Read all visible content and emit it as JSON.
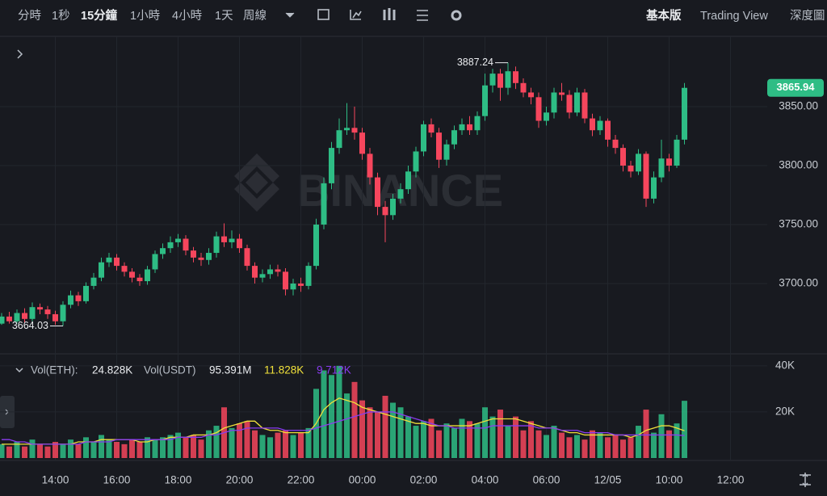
{
  "toolbar": {
    "intervals": [
      "分時",
      "1秒",
      "15分鐘",
      "1小時",
      "4小時",
      "1天",
      "周線"
    ],
    "views": [
      "基本版",
      "Trading View",
      "深度圖"
    ]
  },
  "watermark": "BINANCE",
  "volume_header": {
    "eth_label": "Vol(ETH):",
    "eth_value": "24.828K",
    "usdt_label": "Vol(USDT)",
    "usdt_value": "95.391M",
    "ma5_value": "11.828K",
    "ma10_value": "9.712K"
  },
  "chart_data": [
    {
      "type": "candlestick",
      "up_color": "#2ebd85",
      "down_color": "#f6465d",
      "open": [
        3666,
        3672,
        3668,
        3675,
        3670,
        3680,
        3678,
        3674,
        3668,
        3682,
        3690,
        3685,
        3698,
        3705,
        3718,
        3722,
        3715,
        3710,
        3705,
        3702,
        3712,
        3725,
        3730,
        3735,
        3738,
        3728,
        3722,
        3720,
        3726,
        3740,
        3735,
        3738,
        3730,
        3715,
        3705,
        3708,
        3712,
        3710,
        3695,
        3700,
        3698,
        3715,
        3750,
        3785,
        3815,
        3830,
        3832,
        3828,
        3810,
        3790,
        3765,
        3758,
        3772,
        3780,
        3795,
        3812,
        3835,
        3828,
        3805,
        3818,
        3830,
        3835,
        3830,
        3842,
        3868,
        3878,
        3866,
        3880,
        3870,
        3862,
        3858,
        3838,
        3845,
        3862,
        3860,
        3845,
        3862,
        3840,
        3830,
        3838,
        3822,
        3815,
        3800,
        3795,
        3810,
        3772,
        3790,
        3806,
        3800,
        3822
      ],
      "high": [
        3675,
        3676,
        3678,
        3679,
        3684,
        3683,
        3681,
        3677,
        3685,
        3694,
        3693,
        3701,
        3709,
        3722,
        3726,
        3725,
        3718,
        3713,
        3708,
        3715,
        3728,
        3734,
        3740,
        3742,
        3741,
        3731,
        3726,
        3730,
        3744,
        3751,
        3745,
        3742,
        3733,
        3718,
        3712,
        3716,
        3716,
        3713,
        3704,
        3705,
        3718,
        3755,
        3790,
        3820,
        3840,
        3853,
        3850,
        3832,
        3815,
        3794,
        3770,
        3776,
        3785,
        3800,
        3816,
        3838,
        3840,
        3832,
        3822,
        3834,
        3840,
        3842,
        3846,
        3878,
        3882,
        3882,
        3887.24,
        3884,
        3874,
        3866,
        3862,
        3850,
        3866,
        3870,
        3864,
        3866,
        3865,
        3844,
        3842,
        3840,
        3826,
        3818,
        3804,
        3814,
        3812,
        3795,
        3822,
        3810,
        3826,
        3870
      ],
      "low": [
        3665,
        3666,
        3666,
        3667,
        3668,
        3674,
        3670,
        3665,
        3664.03,
        3679,
        3681,
        3683,
        3695,
        3702,
        3714,
        3711,
        3706,
        3701,
        3698,
        3699,
        3709,
        3721,
        3726,
        3731,
        3724,
        3718,
        3715,
        3716,
        3722,
        3731,
        3730,
        3726,
        3711,
        3700,
        3701,
        3704,
        3706,
        3690,
        3690,
        3693,
        3695,
        3712,
        3746,
        3780,
        3810,
        3826,
        3822,
        3805,
        3784,
        3758,
        3735,
        3754,
        3768,
        3776,
        3790,
        3808,
        3824,
        3798,
        3800,
        3814,
        3826,
        3826,
        3826,
        3838,
        3862,
        3855,
        3860,
        3865,
        3858,
        3852,
        3832,
        3834,
        3840,
        3855,
        3840,
        3842,
        3836,
        3825,
        3826,
        3816,
        3810,
        3795,
        3790,
        3792,
        3765,
        3768,
        3786,
        3795,
        3798,
        3818
      ],
      "close": [
        3672,
        3668,
        3675,
        3670,
        3680,
        3678,
        3674,
        3668,
        3682,
        3690,
        3685,
        3698,
        3705,
        3718,
        3722,
        3715,
        3710,
        3705,
        3702,
        3712,
        3725,
        3730,
        3735,
        3738,
        3728,
        3722,
        3720,
        3726,
        3740,
        3735,
        3738,
        3730,
        3715,
        3705,
        3708,
        3712,
        3710,
        3695,
        3700,
        3698,
        3715,
        3750,
        3785,
        3815,
        3830,
        3832,
        3828,
        3810,
        3790,
        3765,
        3758,
        3772,
        3780,
        3795,
        3812,
        3835,
        3828,
        3805,
        3818,
        3830,
        3835,
        3830,
        3842,
        3868,
        3878,
        3866,
        3880,
        3870,
        3862,
        3858,
        3838,
        3845,
        3862,
        3860,
        3845,
        3862,
        3840,
        3830,
        3838,
        3822,
        3815,
        3800,
        3795,
        3810,
        3772,
        3790,
        3806,
        3800,
        3822,
        3865.94
      ],
      "ylim": [
        3640.4,
        3909.6
      ],
      "yticks": [
        {
          "value": 3700,
          "label": "3700.00"
        },
        {
          "value": 3750,
          "label": "3750.00"
        },
        {
          "value": 3800,
          "label": "3800.00"
        },
        {
          "value": 3850,
          "label": "3850.00"
        }
      ],
      "xticks": [
        {
          "value": 7,
          "label": "14:00"
        },
        {
          "value": 15,
          "label": "16:00"
        },
        {
          "value": 23,
          "label": "18:00"
        },
        {
          "value": 31,
          "label": "20:00"
        },
        {
          "value": 39,
          "label": "22:00"
        },
        {
          "value": 47,
          "label": "00:00"
        },
        {
          "value": 55,
          "label": "02:00"
        },
        {
          "value": 63,
          "label": "04:00"
        },
        {
          "value": 71,
          "label": "06:00"
        },
        {
          "value": 79,
          "label": "12/05"
        },
        {
          "value": 87,
          "label": "10:00"
        },
        {
          "value": 95,
          "label": "12:00"
        }
      ],
      "grid": true
    },
    {
      "type": "volume",
      "values": [
        6000,
        5000,
        7000,
        5000,
        8000,
        6000,
        5000,
        7000,
        6000,
        8000,
        6000,
        9000,
        7000,
        10000,
        8000,
        7000,
        6000,
        8000,
        7000,
        9000,
        8000,
        9000,
        10000,
        11000,
        9000,
        10000,
        8000,
        12000,
        14000,
        22000,
        13000,
        15000,
        16000,
        12000,
        10000,
        9000,
        11000,
        12000,
        10000,
        11000,
        13000,
        30000,
        38000,
        36000,
        40000,
        28000,
        33000,
        25000,
        22000,
        20000,
        27000,
        24000,
        22000,
        18000,
        14000,
        16000,
        17000,
        12000,
        15000,
        13000,
        17000,
        16000,
        15000,
        22000,
        18000,
        21000,
        14000,
        18000,
        12000,
        16000,
        12000,
        10000,
        14000,
        11000,
        9000,
        10000,
        8000,
        12000,
        11000,
        9000,
        10000,
        8000,
        9000,
        14000,
        21000,
        11000,
        19000,
        12000,
        15000,
        24828
      ],
      "series": [
        {
          "color": "#f0e03a",
          "values": [
            6000,
            6000,
            6000,
            6000,
            6000,
            6000,
            6000,
            6000,
            6000,
            6000,
            7000,
            7000,
            7000,
            8000,
            8000,
            8000,
            8000,
            8000,
            7000,
            7000,
            8000,
            8000,
            9000,
            9000,
            9000,
            10000,
            10000,
            10000,
            11000,
            13000,
            14000,
            15000,
            16000,
            16000,
            13000,
            12000,
            12000,
            11000,
            11000,
            11000,
            11000,
            15000,
            21000,
            24000,
            26000,
            25000,
            24000,
            22000,
            21000,
            20000,
            19000,
            18000,
            17000,
            16000,
            15000,
            15000,
            14000,
            14000,
            14000,
            14000,
            14000,
            14000,
            15000,
            16000,
            17000,
            17000,
            17000,
            17000,
            16000,
            15000,
            14000,
            13000,
            13000,
            12000,
            11000,
            11000,
            10000,
            10000,
            10000,
            10000,
            10000,
            10000,
            9000,
            10000,
            12000,
            13000,
            14000,
            14000,
            13000,
            11828
          ]
        },
        {
          "color": "#8a3cf0",
          "values": [
            8000,
            8000,
            7000,
            7000,
            6000,
            6000,
            6000,
            6000,
            6000,
            6000,
            6000,
            7000,
            7000,
            7000,
            7000,
            8000,
            8000,
            8000,
            8000,
            8000,
            8000,
            8000,
            8000,
            9000,
            9000,
            9000,
            9000,
            10000,
            10000,
            11000,
            12000,
            12000,
            13000,
            13000,
            13000,
            13000,
            13000,
            12000,
            12000,
            12000,
            12000,
            13000,
            14000,
            15000,
            16000,
            17000,
            18000,
            19000,
            20000,
            20000,
            20000,
            20000,
            19000,
            18000,
            17000,
            16000,
            15000,
            14000,
            14000,
            13000,
            13000,
            13000,
            13000,
            13000,
            14000,
            14000,
            14000,
            14000,
            14000,
            14000,
            13000,
            13000,
            13000,
            12000,
            12000,
            12000,
            11000,
            11000,
            11000,
            11000,
            10000,
            10000,
            10000,
            10000,
            10000,
            10000,
            10000,
            10000,
            10000,
            9712
          ]
        }
      ],
      "ylim": [
        0,
        44500
      ],
      "yticks": [
        {
          "value": 20000,
          "label": "20K"
        },
        {
          "value": 40000,
          "label": "40K"
        }
      ]
    }
  ]
}
